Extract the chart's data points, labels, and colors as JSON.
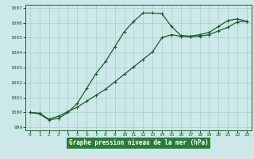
{
  "title": "Graphe pression niveau de la mer (hPa)",
  "bg_color": "#cce8e8",
  "plot_bg_color": "#cce8e8",
  "grid_color": "#aacccc",
  "line_color": "#1a5c2a",
  "xlabel_bg": "#2a7a3a",
  "xlim": [
    -0.5,
    23.5
  ],
  "ylim": [
    998.8,
    1007.2
  ],
  "xticks": [
    0,
    1,
    2,
    3,
    4,
    5,
    6,
    7,
    8,
    9,
    10,
    11,
    12,
    13,
    14,
    15,
    16,
    17,
    18,
    19,
    20,
    21,
    22,
    23
  ],
  "yticks": [
    999,
    1000,
    1001,
    1002,
    1003,
    1004,
    1005,
    1006,
    1007
  ],
  "line1_x": [
    0,
    1,
    2,
    3,
    4,
    5,
    6,
    7,
    8,
    9,
    10,
    11,
    12,
    13,
    14,
    15,
    16,
    17,
    18,
    19,
    20,
    21,
    22,
    23
  ],
  "line1_y": [
    1000.0,
    999.9,
    999.5,
    999.6,
    1000.0,
    1000.6,
    1001.6,
    1002.6,
    1003.4,
    1004.4,
    1005.4,
    1006.1,
    1006.65,
    1006.65,
    1006.6,
    1005.75,
    1005.15,
    1005.1,
    1005.2,
    1005.35,
    1005.75,
    1006.15,
    1006.25,
    1006.1
  ],
  "line2_x": [
    0,
    1,
    2,
    3,
    4,
    5,
    6,
    7,
    8,
    9,
    10,
    11,
    12,
    13,
    14,
    15,
    16,
    17,
    18,
    19,
    20,
    21,
    22,
    23
  ],
  "line2_y": [
    1000.0,
    999.95,
    999.55,
    999.75,
    1000.05,
    1000.35,
    1000.75,
    1001.15,
    1001.55,
    1002.05,
    1002.55,
    1003.05,
    1003.55,
    1004.05,
    1005.0,
    1005.2,
    1005.1,
    1005.05,
    1005.1,
    1005.2,
    1005.45,
    1005.7,
    1006.05,
    1006.1
  ]
}
